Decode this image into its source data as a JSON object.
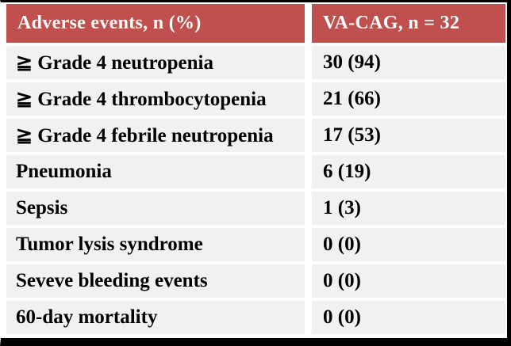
{
  "title": "Adverse events table",
  "table": {
    "header": {
      "col1": "Adverse events, n (%)",
      "col2": "VA-CAG, n = 32"
    },
    "rows": [
      {
        "label": "≧ Grade 4 neutropenia",
        "value": "30 (94)"
      },
      {
        "label": "≧ Grade 4 thrombocytopenia",
        "value": "21 (66)"
      },
      {
        "label": "≧ Grade 4 febrile neutropenia",
        "value": "17 (53)"
      },
      {
        "label": "Pneumonia",
        "value": "6 (19)"
      },
      {
        "label": "Sepsis",
        "value": "1 (3)"
      },
      {
        "label": "Tumor lysis syndrome",
        "value": "0 (0)"
      },
      {
        "label": "Seveve bleeding events",
        "value": "0 (0)"
      },
      {
        "label": "60-day mortality",
        "value": "0 (0)"
      }
    ]
  },
  "chart_data": {
    "type": "table",
    "title": "Adverse events, n (%) — VA-CAG, n = 32",
    "columns": [
      "Adverse events, n (%)",
      "VA-CAG, n = 32"
    ],
    "rows": [
      [
        "≧ Grade 4 neutropenia",
        "30 (94)"
      ],
      [
        "≧ Grade 4 thrombocytopenia",
        "21 (66)"
      ],
      [
        "≧ Grade 4 febrile neutropenia",
        "17 (53)"
      ],
      [
        "Pneumonia",
        "6 (19)"
      ],
      [
        "Sepsis",
        "1 (3)"
      ],
      [
        "Tumor lysis syndrome",
        "0 (0)"
      ],
      [
        "Seveve bleeding events",
        "0 (0)"
      ],
      [
        "60-day mortality",
        "0 (0)"
      ]
    ],
    "parsed": [
      {
        "event": "≧ Grade 4 neutropenia",
        "n": 30,
        "percent": 94
      },
      {
        "event": "≧ Grade 4 thrombocytopenia",
        "n": 21,
        "percent": 66
      },
      {
        "event": "≧ Grade 4 febrile neutropenia",
        "n": 17,
        "percent": 53
      },
      {
        "event": "Pneumonia",
        "n": 6,
        "percent": 19
      },
      {
        "event": "Sepsis",
        "n": 1,
        "percent": 3
      },
      {
        "event": "Tumor lysis syndrome",
        "n": 0,
        "percent": 0
      },
      {
        "event": "Seveve bleeding events",
        "n": 0,
        "percent": 0
      },
      {
        "event": "60-day mortality",
        "n": 0,
        "percent": 0
      }
    ],
    "cohort_size": 32
  },
  "colors": {
    "header_bg": "#C0504D",
    "header_text": "#FFFFFF",
    "row_bg": "#F1F1F1",
    "row_text": "#000000",
    "frame": "#000000",
    "gutter": "#FFFFFF"
  }
}
